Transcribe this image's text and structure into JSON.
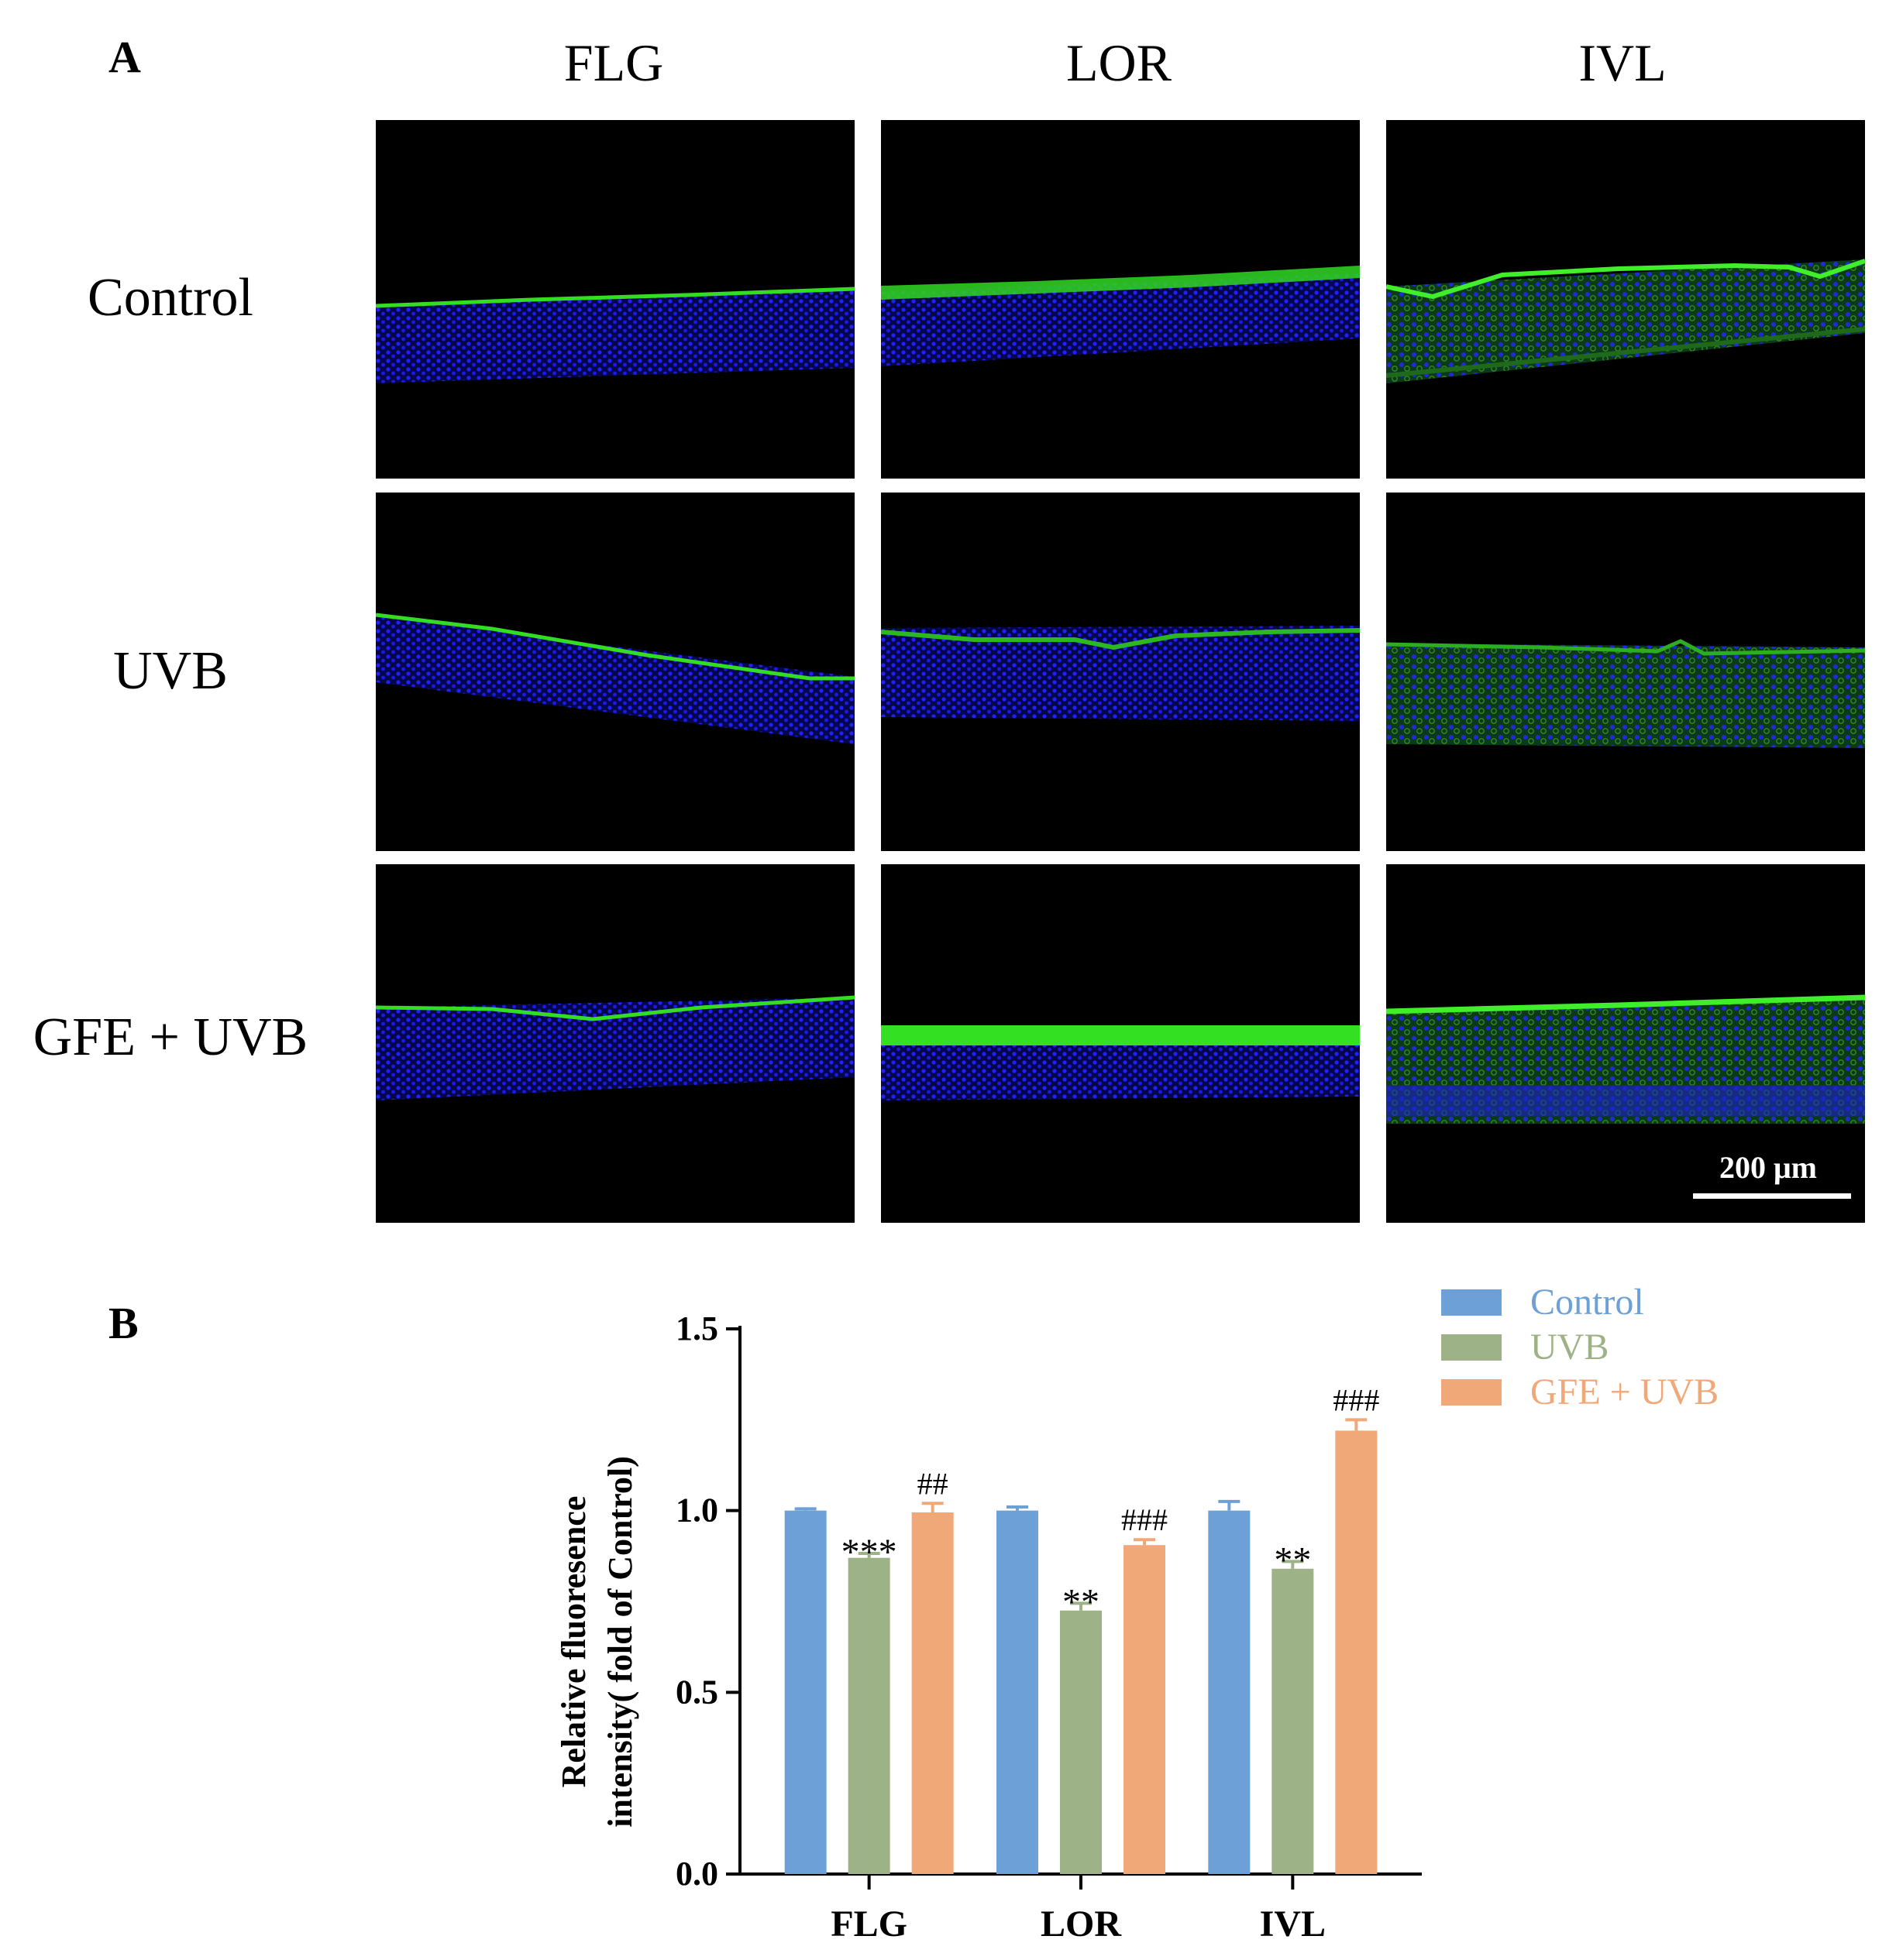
{
  "panel_a": {
    "letter": "A",
    "columns": [
      "FLG",
      "LOR",
      "IVL"
    ],
    "rows": [
      "Control",
      "UVB",
      "GFE + UVB"
    ],
    "scale_bar_label": "200 μm",
    "stain_colors": {
      "nuclei": "#1a1aff",
      "marker": "#33dd22",
      "background": "#000000"
    }
  },
  "panel_b": {
    "letter": "B",
    "chart_data": {
      "type": "bar",
      "categories": [
        "FLG",
        "LOR",
        "IVL"
      ],
      "series": [
        {
          "name": "Control",
          "color": "#6ca0d6",
          "values": [
            1.0,
            1.0,
            1.0
          ],
          "errors": [
            0.005,
            0.01,
            0.025
          ],
          "annotations": [
            "",
            "",
            ""
          ]
        },
        {
          "name": "UVB",
          "color": "#9db387",
          "values": [
            0.87,
            0.725,
            0.84
          ],
          "errors": [
            0.012,
            0.02,
            0.02
          ],
          "annotations": [
            "***",
            "**",
            "**"
          ]
        },
        {
          "name": "GFE + UVB",
          "color": "#f1a878",
          "values": [
            0.995,
            0.905,
            1.22
          ],
          "errors": [
            0.025,
            0.015,
            0.03
          ],
          "annotations": [
            "##",
            "###",
            "###"
          ]
        }
      ],
      "ylabel_line1": "Relative fluoresence",
      "ylabel_line2": "intensity( fold of Control)",
      "ylim": [
        0,
        1.5
      ],
      "yticks": [
        "0.0",
        "0.5",
        "1.0",
        "1.5"
      ],
      "legend_position": "top-right"
    }
  }
}
